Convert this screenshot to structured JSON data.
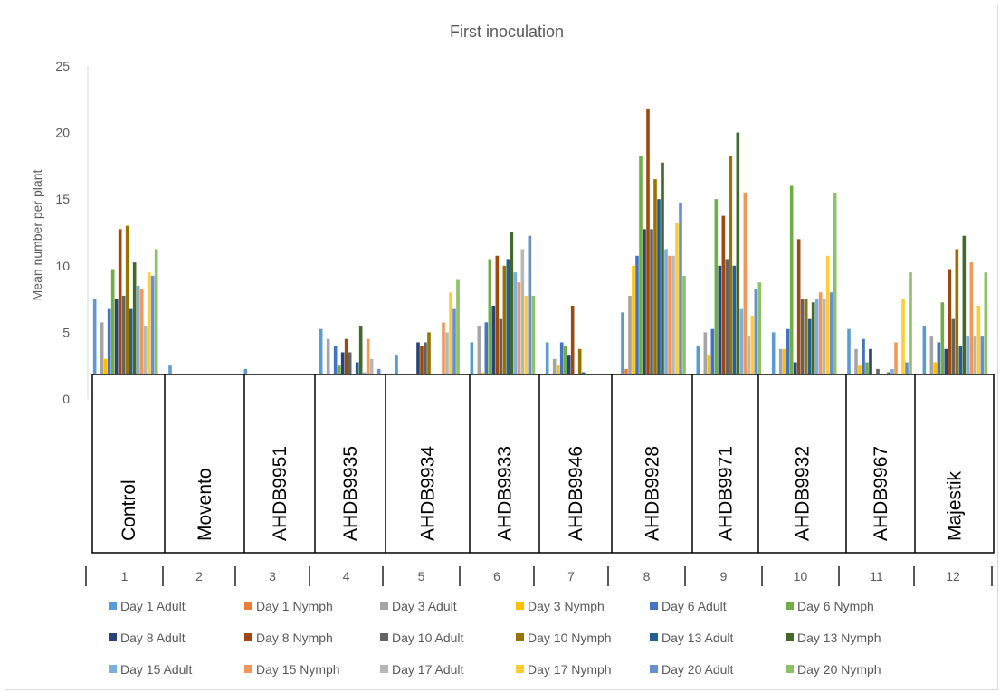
{
  "chart_data": {
    "type": "bar",
    "title": "First inoculation",
    "xlabel": "",
    "ylabel": "Mean number per plant",
    "ylim": [
      0,
      25
    ],
    "yticks": [
      0,
      5,
      10,
      15,
      20,
      25
    ],
    "categories": [
      "1",
      "2",
      "3",
      "4",
      "5",
      "6",
      "7",
      "8",
      "9",
      "10",
      "11",
      "12"
    ],
    "treatments": [
      "Control",
      "Movento",
      "AHDB9951",
      "AHDB9935",
      "AHDB9934",
      "AHDB9933",
      "AHDB9946",
      "AHDB9928",
      "AHDB9971",
      "AHDB9932",
      "AHDB9967",
      "Majestik"
    ],
    "grid": false,
    "legend_position": "bottom",
    "series": [
      {
        "name": "Day 1 Adult",
        "color": "#5b9bd5",
        "values": [
          7.5,
          2.5,
          2.25,
          5.25,
          3.25,
          4.25,
          4.25,
          6.5,
          4.0,
          5.0,
          5.25,
          5.5
        ]
      },
      {
        "name": "Day 1 Nymph",
        "color": "#ed7d31",
        "values": [
          0.25,
          0.25,
          0.75,
          0.75,
          0.5,
          1.25,
          0.5,
          2.25,
          1.75,
          1.0,
          0.75,
          0.0
        ]
      },
      {
        "name": "Day 3 Adult",
        "color": "#a5a5a5",
        "values": [
          5.75,
          0.75,
          0.0,
          4.5,
          1.5,
          5.5,
          3.0,
          7.75,
          5.0,
          3.75,
          3.75,
          4.75
        ]
      },
      {
        "name": "Day 3 Nymph",
        "color": "#ffc000",
        "values": [
          3.0,
          0.25,
          0.0,
          1.0,
          0.0,
          2.0,
          2.5,
          10.0,
          3.25,
          3.75,
          2.5,
          2.75
        ]
      },
      {
        "name": "Day 6 Adult",
        "color": "#4472c4",
        "values": [
          6.75,
          0.0,
          0.0,
          4.0,
          0.25,
          5.75,
          4.25,
          10.75,
          5.25,
          5.25,
          4.5,
          4.25
        ]
      },
      {
        "name": "Day 6 Nymph",
        "color": "#70ad47",
        "values": [
          9.75,
          0.0,
          0.0,
          2.5,
          0.0,
          10.5,
          4.0,
          18.25,
          15.0,
          16.0,
          2.75,
          7.25
        ]
      },
      {
        "name": "Day 8 Adult",
        "color": "#264478",
        "values": [
          7.5,
          0.0,
          0.0,
          3.5,
          4.25,
          7.0,
          3.25,
          12.75,
          10.0,
          2.75,
          3.75,
          3.75
        ]
      },
      {
        "name": "Day 8 Nymph",
        "color": "#9e480e",
        "values": [
          12.75,
          0.0,
          0.0,
          4.5,
          4.0,
          10.75,
          7.0,
          21.75,
          13.75,
          12.0,
          1.75,
          9.75
        ]
      },
      {
        "name": "Day 10 Adult",
        "color": "#636363",
        "values": [
          7.75,
          0.0,
          0.0,
          3.5,
          4.25,
          6.0,
          1.75,
          12.75,
          10.5,
          7.5,
          2.25,
          6.0
        ]
      },
      {
        "name": "Day 10 Nymph",
        "color": "#997300",
        "values": [
          13.0,
          0.0,
          0.0,
          1.75,
          5.0,
          10.0,
          3.75,
          16.5,
          18.25,
          7.5,
          0.25,
          11.25
        ]
      },
      {
        "name": "Day 13 Adult",
        "color": "#255e91",
        "values": [
          6.75,
          0.0,
          0.0,
          2.75,
          0.0,
          10.5,
          2.0,
          15.0,
          10.0,
          6.0,
          1.5,
          4.0
        ]
      },
      {
        "name": "Day 13 Nymph",
        "color": "#43682b",
        "values": [
          10.25,
          0.0,
          0.0,
          5.5,
          0.0,
          12.5,
          1.75,
          17.75,
          20.0,
          7.25,
          2.0,
          12.25
        ]
      },
      {
        "name": "Day 15 Adult",
        "color": "#7cafdd",
        "values": [
          8.5,
          0.0,
          0.0,
          2.0,
          0.0,
          9.5,
          1.5,
          11.25,
          6.75,
          7.5,
          2.25,
          4.75
        ]
      },
      {
        "name": "Day 15 Nymph",
        "color": "#f1975a",
        "values": [
          8.25,
          0.0,
          0.0,
          4.5,
          5.75,
          8.75,
          0.5,
          10.75,
          15.5,
          8.0,
          4.25,
          10.25
        ]
      },
      {
        "name": "Day 17 Adult",
        "color": "#b7b7b7",
        "values": [
          5.5,
          0.0,
          0.0,
          3.0,
          5.0,
          11.25,
          0.75,
          10.75,
          4.75,
          7.5,
          1.75,
          4.75
        ]
      },
      {
        "name": "Day 17 Nymph",
        "color": "#ffcd33",
        "values": [
          9.5,
          0.0,
          0.0,
          1.25,
          8.0,
          7.75,
          0.75,
          13.25,
          6.25,
          10.75,
          7.5,
          7.0
        ]
      },
      {
        "name": "Day 20 Adult",
        "color": "#698ed0",
        "values": [
          9.25,
          0.0,
          0.0,
          2.25,
          6.75,
          12.25,
          0.75,
          14.75,
          8.25,
          8.0,
          2.75,
          4.75
        ]
      },
      {
        "name": "Day 20 Nymph",
        "color": "#8cc168",
        "values": [
          11.25,
          0.0,
          0.0,
          1.75,
          9.0,
          7.75,
          0.5,
          9.25,
          8.75,
          15.5,
          9.5,
          9.5
        ]
      }
    ]
  }
}
